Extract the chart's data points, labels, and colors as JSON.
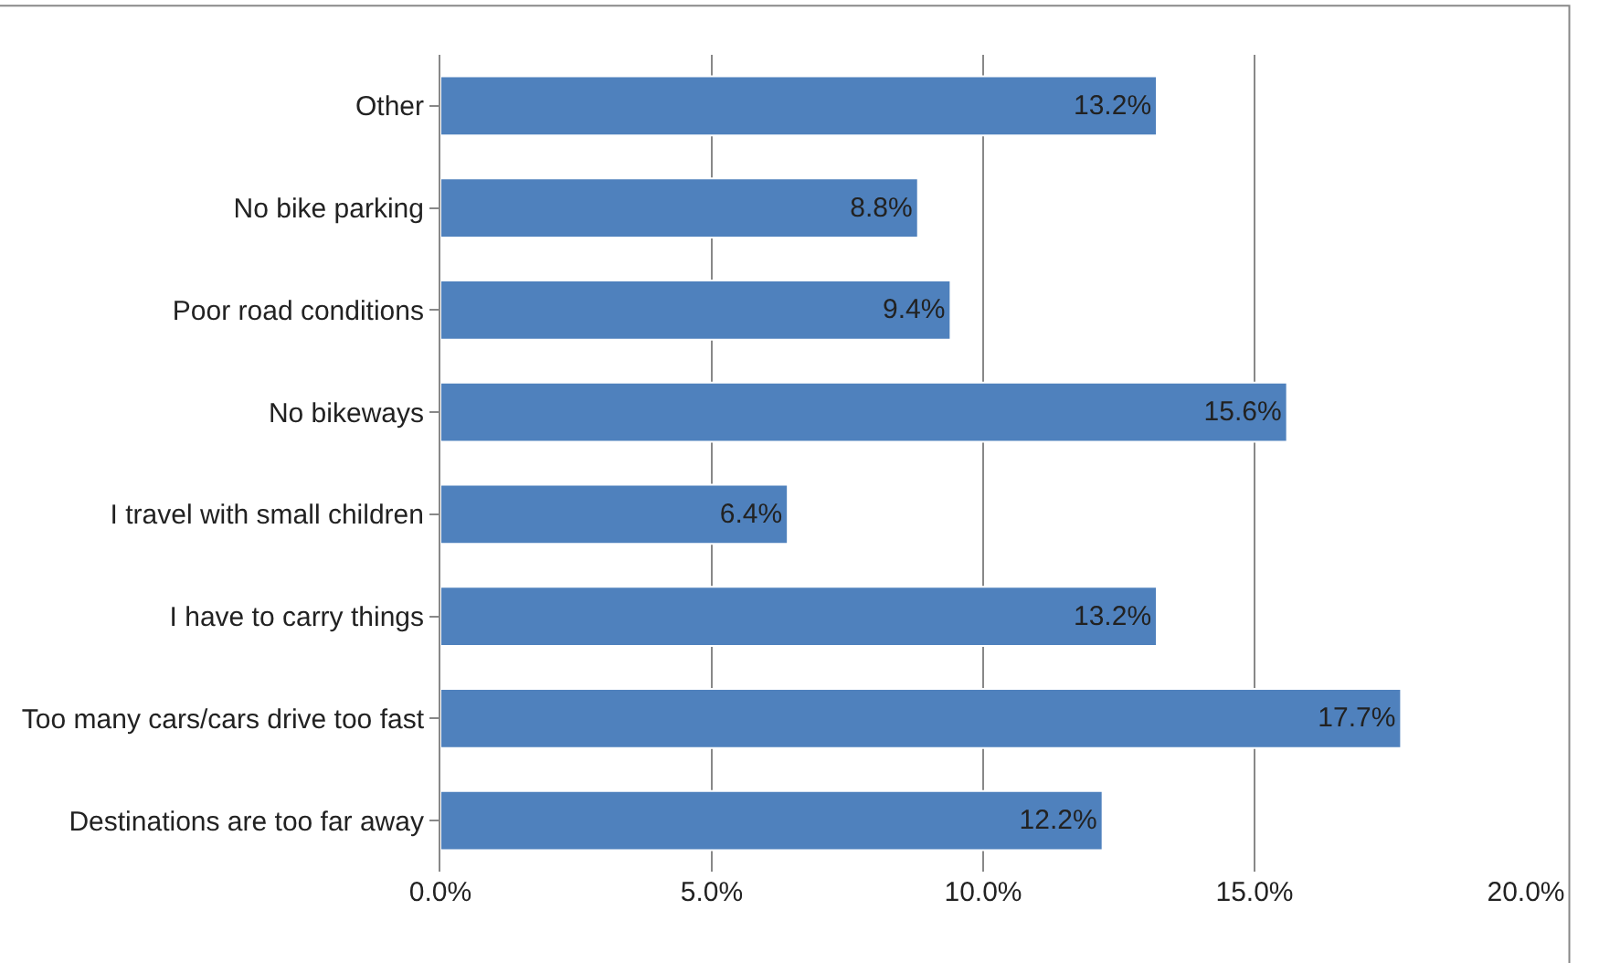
{
  "chart_data": {
    "type": "bar",
    "orientation": "horizontal",
    "categories": [
      "Other",
      "No bike parking",
      "Poor road conditions",
      "No bikeways",
      "I travel with small children",
      "I have to carry things",
      "Too many cars/cars drive too fast",
      "Destinations are too far away"
    ],
    "values": [
      13.2,
      8.8,
      9.4,
      15.6,
      6.4,
      13.2,
      17.7,
      12.2
    ],
    "value_labels": [
      "13.2%",
      "8.8%",
      "9.4%",
      "15.6%",
      "6.4%",
      "13.2%",
      "17.7%",
      "12.2%"
    ],
    "color": "#4f81bd",
    "xlim": [
      0,
      20
    ],
    "xticks": [
      {
        "value": 0,
        "label": "0.0%"
      },
      {
        "value": 5,
        "label": "5.0%"
      },
      {
        "value": 10,
        "label": "10.0%"
      },
      {
        "value": 15,
        "label": "15.0%"
      },
      {
        "value": 20,
        "label": "20.0%"
      }
    ],
    "grid": "x",
    "legend": false
  }
}
